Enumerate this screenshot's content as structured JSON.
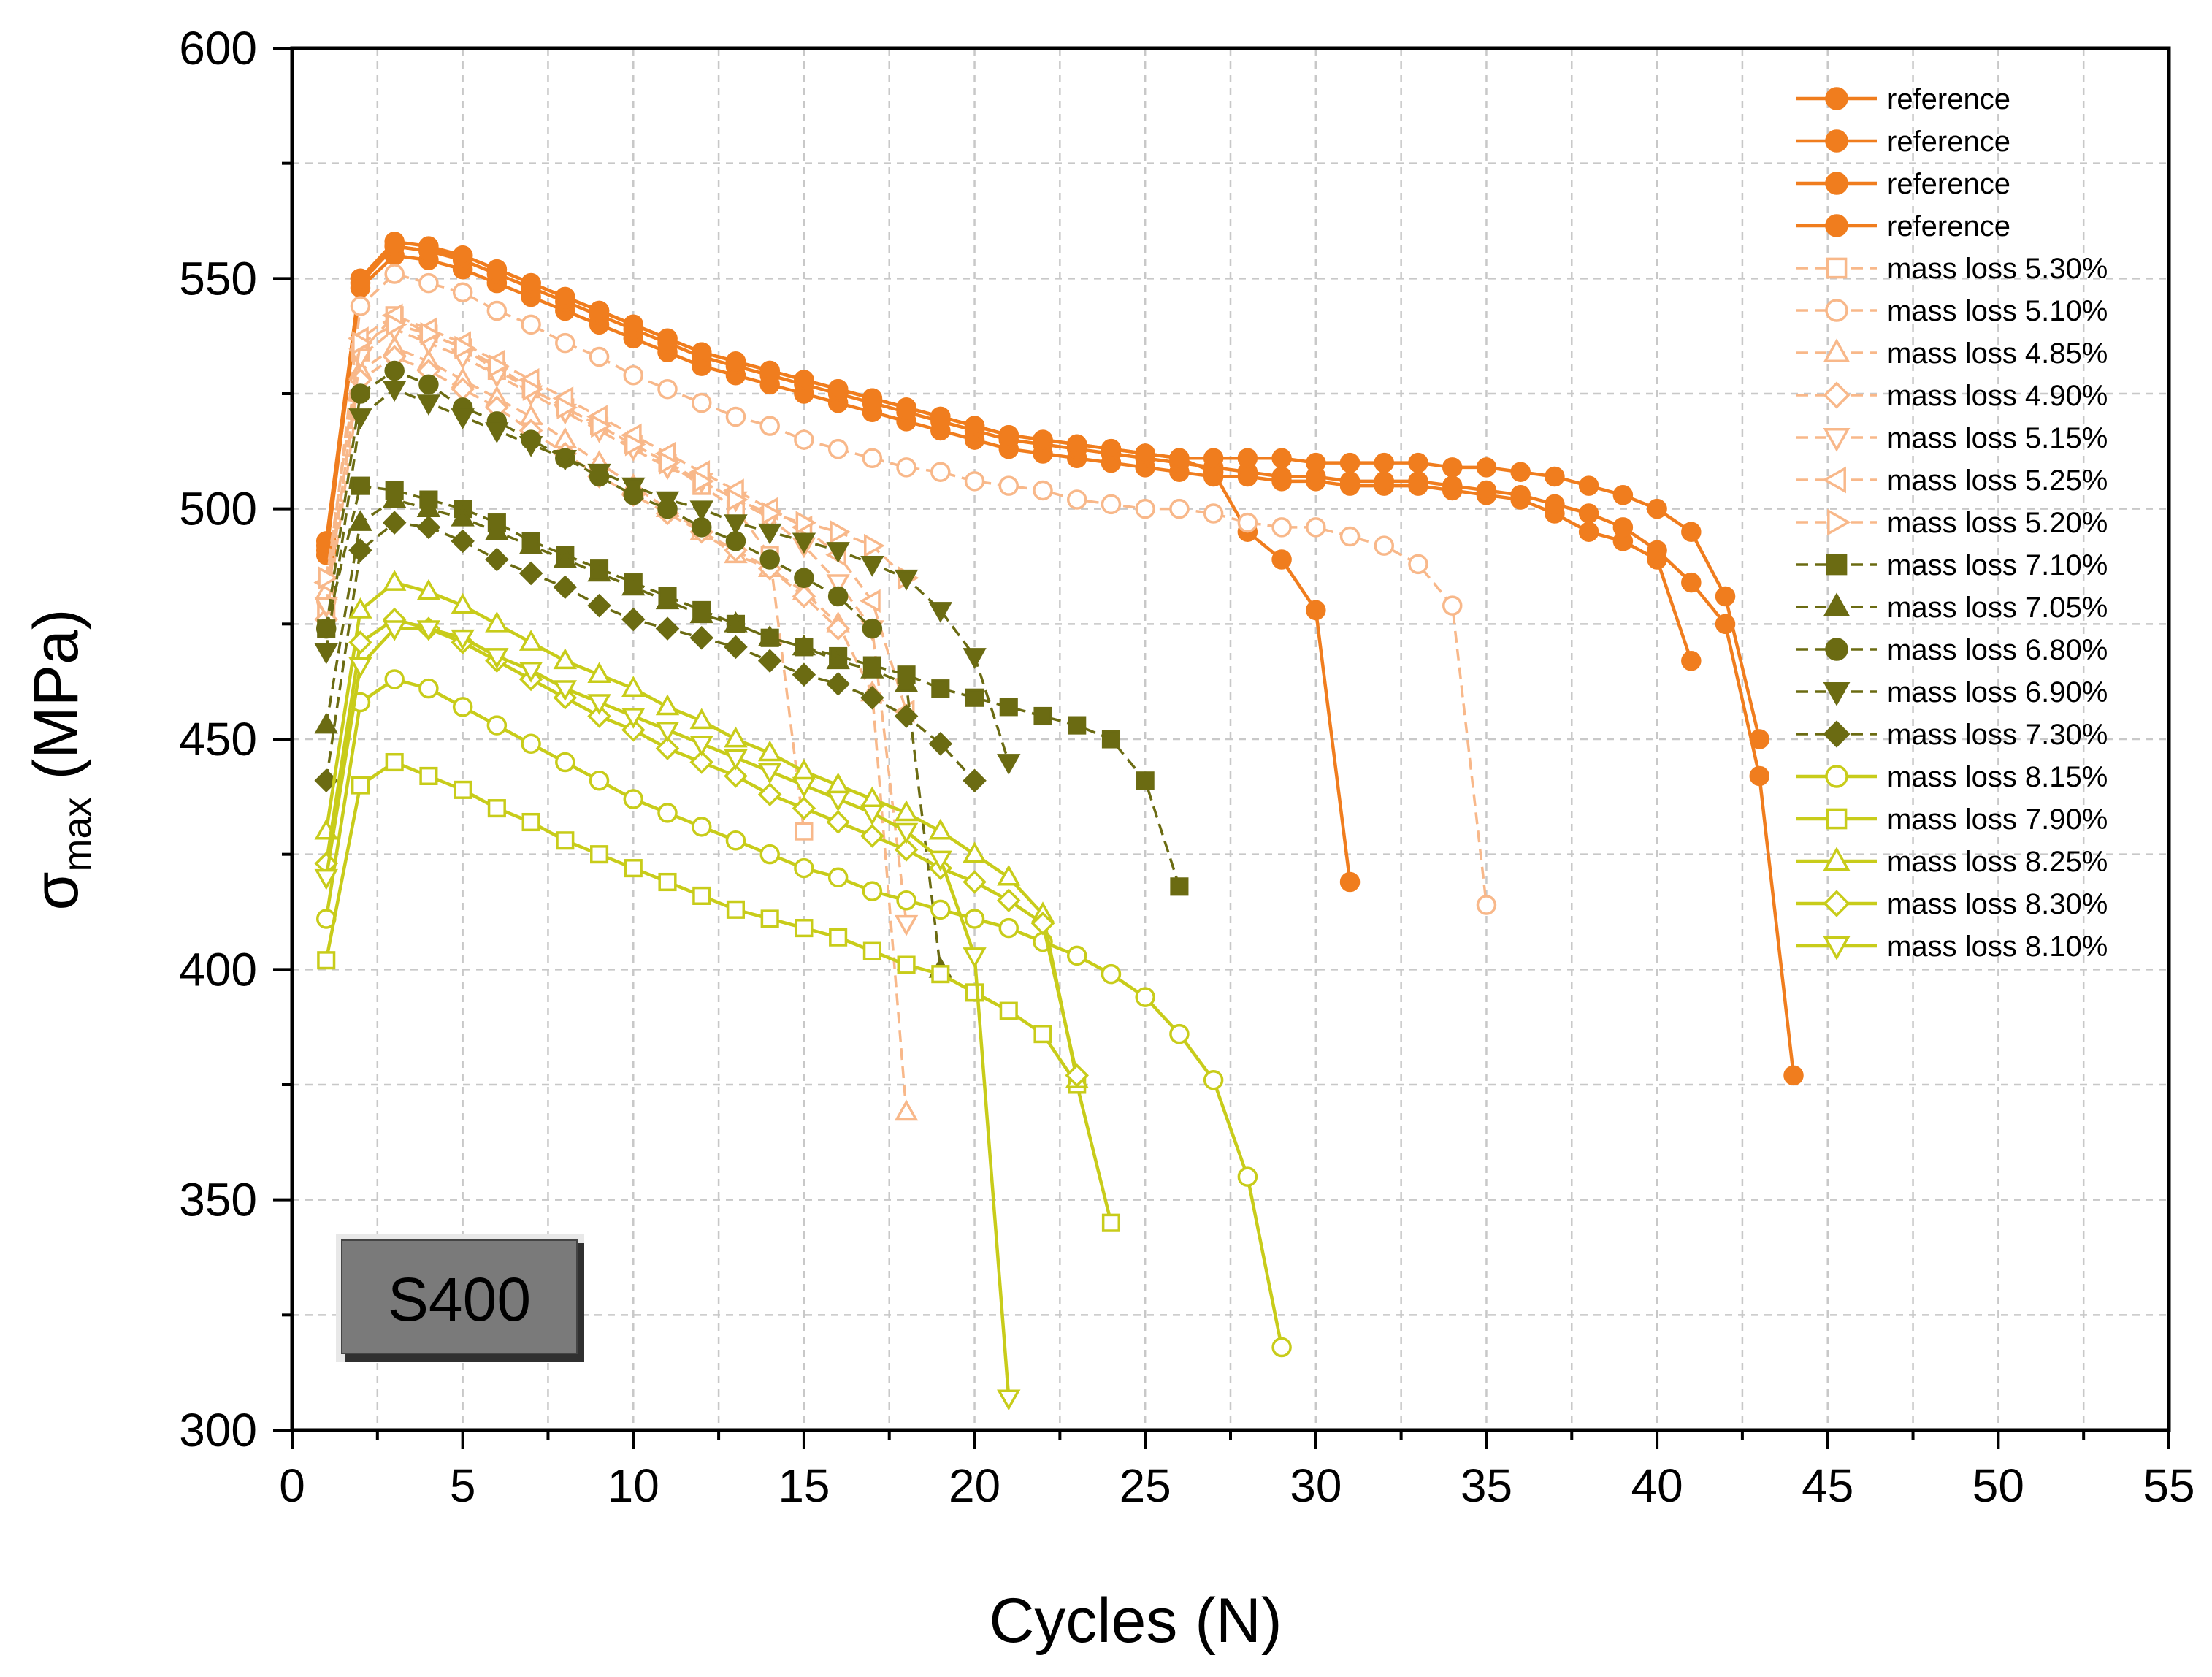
{
  "chart_data": {
    "type": "line",
    "title": "",
    "xlabel": "Cycles (N)",
    "ylabel_main": "σ",
    "ylabel_sub": "max",
    "ylabel_unit": " (MPa)",
    "xlim": [
      0,
      55
    ],
    "ylim": [
      300,
      600
    ],
    "xticks": [
      0,
      5,
      10,
      15,
      20,
      25,
      30,
      35,
      40,
      45,
      50,
      55
    ],
    "yticks": [
      300,
      350,
      400,
      450,
      500,
      550,
      600
    ],
    "grid": true,
    "legend_position": "top-right",
    "annotation": "S400",
    "series": [
      {
        "name": "reference",
        "color": "#F07D1E",
        "marker": "circle",
        "filled": true,
        "dash": "solid",
        "x": [
          1,
          2,
          3,
          4,
          5,
          6,
          7,
          8,
          9,
          10,
          11,
          12,
          13,
          14,
          15,
          16,
          17,
          18,
          19,
          20,
          21,
          22,
          23,
          24,
          25,
          26,
          27,
          28,
          29,
          30,
          31
        ],
        "y": [
          493,
          550,
          558,
          557,
          555,
          552,
          549,
          546,
          543,
          540,
          537,
          534,
          532,
          530,
          528,
          526,
          524,
          522,
          520,
          518,
          516,
          515,
          514,
          513,
          512,
          511,
          508,
          495,
          489,
          478,
          419
        ]
      },
      {
        "name": "reference",
        "color": "#F07D1E",
        "marker": "circle",
        "filled": true,
        "dash": "solid",
        "x": [
          1,
          2,
          3,
          4,
          5,
          6,
          7,
          8,
          9,
          10,
          11,
          12,
          13,
          14,
          15,
          16,
          17,
          18,
          19,
          20,
          21,
          22,
          23,
          24,
          25,
          26,
          27,
          28,
          29,
          30,
          31,
          32,
          33,
          34,
          35,
          36,
          37,
          38,
          39,
          40,
          41
        ],
        "y": [
          491,
          548,
          555,
          554,
          552,
          549,
          546,
          543,
          540,
          537,
          534,
          531,
          529,
          527,
          525,
          523,
          521,
          519,
          517,
          515,
          513,
          512,
          511,
          510,
          509,
          508,
          507,
          507,
          506,
          506,
          505,
          505,
          505,
          504,
          503,
          502,
          499,
          495,
          493,
          489,
          467
        ]
      },
      {
        "name": "reference",
        "color": "#F07D1E",
        "marker": "circle",
        "filled": true,
        "dash": "solid",
        "x": [
          1,
          2,
          3,
          4,
          5,
          6,
          7,
          8,
          9,
          10,
          11,
          12,
          13,
          14,
          15,
          16,
          17,
          18,
          19,
          20,
          21,
          22,
          23,
          24,
          25,
          26,
          27,
          28,
          29,
          30,
          31,
          32,
          33,
          34,
          35,
          36,
          37,
          38,
          39,
          40,
          41,
          42,
          43,
          44
        ],
        "y": [
          490,
          549,
          557,
          556,
          554,
          551,
          548,
          545,
          542,
          539,
          536,
          533,
          531,
          529,
          527,
          525,
          523,
          521,
          519,
          517,
          515,
          514,
          513,
          512,
          511,
          510,
          509,
          508,
          507,
          507,
          506,
          506,
          506,
          505,
          504,
          503,
          501,
          499,
          496,
          491,
          484,
          475,
          442,
          377
        ]
      },
      {
        "name": "reference",
        "color": "#F07D1E",
        "marker": "circle",
        "filled": true,
        "dash": "solid",
        "x": [
          1,
          2,
          3,
          4,
          5,
          6,
          7,
          8,
          9,
          10,
          11,
          12,
          13,
          14,
          15,
          16,
          17,
          18,
          19,
          20,
          21,
          22,
          23,
          24,
          25,
          26,
          27,
          28,
          29,
          30,
          31,
          32,
          33,
          34,
          35,
          36,
          37,
          38,
          39,
          40,
          41,
          42,
          43
        ],
        "y": [
          492,
          550,
          557,
          556,
          555,
          552,
          549,
          546,
          543,
          540,
          537,
          534,
          532,
          530,
          528,
          526,
          524,
          522,
          520,
          518,
          516,
          515,
          514,
          513,
          512,
          511,
          511,
          511,
          511,
          510,
          510,
          510,
          510,
          509,
          509,
          508,
          507,
          505,
          503,
          500,
          495,
          481,
          450
        ]
      },
      {
        "name": "mass loss 5.30%",
        "color": "#F8B88A",
        "marker": "square",
        "filled": false,
        "dash": "dashed",
        "x": [
          1,
          2,
          3,
          4,
          5,
          6,
          7,
          8,
          9,
          10,
          11,
          12,
          13,
          14,
          15
        ],
        "y": [
          478,
          534,
          542,
          538,
          535,
          530,
          526,
          522,
          518,
          514,
          510,
          505,
          500,
          490,
          430
        ]
      },
      {
        "name": "mass loss 5.10%",
        "color": "#F8B88A",
        "marker": "circle",
        "filled": false,
        "dash": "dashed",
        "x": [
          1,
          2,
          3,
          4,
          5,
          6,
          7,
          8,
          9,
          10,
          11,
          12,
          13,
          14,
          15,
          16,
          17,
          18,
          19,
          20,
          21,
          22,
          23,
          24,
          25,
          26,
          27,
          28,
          29,
          30,
          31,
          32,
          33,
          34,
          35
        ],
        "y": [
          480,
          544,
          551,
          549,
          547,
          543,
          540,
          536,
          533,
          529,
          526,
          523,
          520,
          518,
          515,
          513,
          511,
          509,
          508,
          506,
          505,
          504,
          502,
          501,
          500,
          500,
          499,
          497,
          496,
          496,
          494,
          492,
          488,
          479,
          414
        ]
      },
      {
        "name": "mass loss 4.85%",
        "color": "#F8B88A",
        "marker": "triangle-up",
        "filled": false,
        "dash": "dashed",
        "x": [
          1,
          2,
          3,
          4,
          5,
          6,
          7,
          8,
          9,
          10,
          11,
          12,
          13,
          14,
          15,
          16,
          17,
          18
        ],
        "y": [
          482,
          530,
          535,
          532,
          528,
          524,
          520,
          515,
          510,
          505,
          500,
          495,
          490,
          487,
          482,
          475,
          460,
          369
        ]
      },
      {
        "name": "mass loss 4.90%",
        "color": "#F8B88A",
        "marker": "diamond",
        "filled": false,
        "dash": "dashed",
        "x": [
          1,
          2,
          3,
          4,
          5,
          6,
          7,
          8,
          9,
          10,
          11,
          12,
          13,
          14,
          15,
          16
        ],
        "y": [
          476,
          528,
          533,
          530,
          526,
          522,
          517,
          512,
          507,
          503,
          499,
          495,
          491,
          487,
          481,
          474
        ]
      },
      {
        "name": "mass loss 5.15%",
        "color": "#F8B88A",
        "marker": "triangle-down",
        "filled": false,
        "dash": "dashed",
        "x": [
          1,
          2,
          3,
          4,
          5,
          6,
          7,
          8,
          9,
          10,
          11,
          12,
          13,
          14,
          15,
          16,
          17,
          18
        ],
        "y": [
          479,
          533,
          539,
          536,
          533,
          529,
          525,
          521,
          517,
          513,
          509,
          506,
          502,
          498,
          492,
          484,
          474,
          410
        ]
      },
      {
        "name": "mass loss 5.25%",
        "color": "#F8B88A",
        "marker": "triangle-left",
        "filled": false,
        "dash": "dashed",
        "x": [
          1,
          2,
          3,
          4,
          5,
          6,
          7,
          8,
          9,
          10,
          11,
          12,
          13,
          14,
          15,
          16,
          17,
          18
        ],
        "y": [
          484,
          537,
          542,
          539,
          536,
          532,
          528,
          524,
          520,
          516,
          512,
          508,
          504,
          500,
          496,
          490,
          480,
          456
        ]
      },
      {
        "name": "mass loss 5.20%",
        "color": "#F8B88A",
        "marker": "triangle-right",
        "filled": false,
        "dash": "dashed",
        "x": [
          1,
          2,
          3,
          4,
          5,
          6,
          7,
          8,
          9,
          10,
          11,
          12,
          13,
          14,
          15,
          16,
          17,
          18
        ],
        "y": [
          485,
          536,
          540,
          538,
          535,
          531,
          526,
          522,
          518,
          514,
          510,
          506,
          502,
          499,
          497,
          495,
          492,
          485
        ]
      },
      {
        "name": "mass loss 7.10%",
        "color": "#6B6B12",
        "marker": "square",
        "filled": true,
        "dash": "dashed",
        "x": [
          1,
          2,
          3,
          4,
          5,
          6,
          7,
          8,
          9,
          10,
          11,
          12,
          13,
          14,
          15,
          16,
          17,
          18,
          19,
          20,
          21,
          22,
          23,
          24,
          25,
          26
        ],
        "y": [
          474,
          505,
          504,
          502,
          500,
          497,
          493,
          490,
          487,
          484,
          481,
          478,
          475,
          472,
          470,
          468,
          466,
          464,
          461,
          459,
          457,
          455,
          453,
          450,
          441,
          418
        ]
      },
      {
        "name": "mass loss 7.05%",
        "color": "#6B6B12",
        "marker": "triangle-up",
        "filled": true,
        "dash": "dashed",
        "x": [
          1,
          2,
          3,
          4,
          5,
          6,
          7,
          8,
          9,
          10,
          11,
          12,
          13,
          14,
          15,
          16,
          17,
          18,
          19
        ],
        "y": [
          453,
          497,
          502,
          500,
          498,
          495,
          492,
          489,
          486,
          483,
          480,
          477,
          475,
          472,
          470,
          467,
          465,
          462,
          400
        ]
      },
      {
        "name": "mass loss 6.80%",
        "color": "#6B6B12",
        "marker": "circle",
        "filled": true,
        "dash": "dashed",
        "x": [
          1,
          2,
          3,
          4,
          5,
          6,
          7,
          8,
          9,
          10,
          11,
          12,
          13,
          14,
          15,
          16,
          17
        ],
        "y": [
          474,
          525,
          530,
          527,
          522,
          519,
          515,
          511,
          507,
          503,
          500,
          496,
          493,
          489,
          485,
          481,
          474
        ]
      },
      {
        "name": "mass loss 6.90%",
        "color": "#6B6B12",
        "marker": "triangle-down",
        "filled": true,
        "dash": "dashed",
        "x": [
          1,
          2,
          3,
          4,
          5,
          6,
          7,
          8,
          9,
          10,
          11,
          12,
          13,
          14,
          15,
          16,
          17,
          18,
          19,
          20,
          21
        ],
        "y": [
          469,
          520,
          526,
          523,
          520,
          517,
          514,
          511,
          508,
          505,
          502,
          500,
          497,
          495,
          493,
          491,
          488,
          485,
          478,
          468,
          445
        ]
      },
      {
        "name": "mass loss 7.30%",
        "color": "#6B6B12",
        "marker": "diamond",
        "filled": true,
        "dash": "dashed",
        "x": [
          1,
          2,
          3,
          4,
          5,
          6,
          7,
          8,
          9,
          10,
          11,
          12,
          13,
          14,
          15,
          16,
          17,
          18,
          19,
          20
        ],
        "y": [
          441,
          491,
          497,
          496,
          493,
          489,
          486,
          483,
          479,
          476,
          474,
          472,
          470,
          467,
          464,
          462,
          459,
          455,
          449,
          441
        ]
      },
      {
        "name": "mass loss 8.15%",
        "color": "#C8CC1A",
        "marker": "circle",
        "filled": false,
        "dash": "solid",
        "x": [
          1,
          2,
          3,
          4,
          5,
          6,
          7,
          8,
          9,
          10,
          11,
          12,
          13,
          14,
          15,
          16,
          17,
          18,
          19,
          20,
          21,
          22,
          23,
          24,
          25,
          26,
          27,
          28,
          29
        ],
        "y": [
          411,
          458,
          463,
          461,
          457,
          453,
          449,
          445,
          441,
          437,
          434,
          431,
          428,
          425,
          422,
          420,
          417,
          415,
          413,
          411,
          409,
          406,
          403,
          399,
          394,
          386,
          376,
          355,
          318
        ]
      },
      {
        "name": "mass loss 7.90%",
        "color": "#C8CC1A",
        "marker": "square",
        "filled": false,
        "dash": "solid",
        "x": [
          1,
          2,
          3,
          4,
          5,
          6,
          7,
          8,
          9,
          10,
          11,
          12,
          13,
          14,
          15,
          16,
          17,
          18,
          19,
          20,
          21,
          22,
          23,
          24
        ],
        "y": [
          402,
          440,
          445,
          442,
          439,
          435,
          432,
          428,
          425,
          422,
          419,
          416,
          413,
          411,
          409,
          407,
          404,
          401,
          399,
          395,
          391,
          386,
          375,
          345
        ]
      },
      {
        "name": "mass loss 8.25%",
        "color": "#C8CC1A",
        "marker": "triangle-up",
        "filled": false,
        "dash": "solid",
        "x": [
          1,
          2,
          3,
          4,
          5,
          6,
          7,
          8,
          9,
          10,
          11,
          12,
          13,
          14,
          15,
          16,
          17,
          18,
          19,
          20,
          21,
          22,
          23
        ],
        "y": [
          430,
          478,
          484,
          482,
          479,
          475,
          471,
          467,
          464,
          461,
          457,
          454,
          450,
          447,
          443,
          440,
          437,
          434,
          430,
          425,
          420,
          412,
          376
        ]
      },
      {
        "name": "mass loss 8.30%",
        "color": "#C8CC1A",
        "marker": "diamond",
        "filled": false,
        "dash": "solid",
        "x": [
          1,
          2,
          3,
          4,
          5,
          6,
          7,
          8,
          9,
          10,
          11,
          12,
          13,
          14,
          15,
          16,
          17,
          18,
          19,
          20,
          21,
          22,
          23
        ],
        "y": [
          423,
          471,
          476,
          474,
          471,
          467,
          463,
          459,
          455,
          452,
          448,
          445,
          442,
          438,
          435,
          432,
          429,
          426,
          422,
          419,
          415,
          410,
          377
        ]
      },
      {
        "name": "mass loss 8.10%",
        "color": "#C8CC1A",
        "marker": "triangle-down",
        "filled": false,
        "dash": "solid",
        "x": [
          1,
          2,
          3,
          4,
          5,
          6,
          7,
          8,
          9,
          10,
          11,
          12,
          13,
          14,
          15,
          16,
          17,
          18,
          19,
          20,
          21
        ],
        "y": [
          420,
          466,
          474,
          474,
          472,
          468,
          465,
          461,
          458,
          455,
          452,
          449,
          446,
          443,
          440,
          437,
          434,
          430,
          424,
          403,
          307
        ]
      }
    ]
  }
}
